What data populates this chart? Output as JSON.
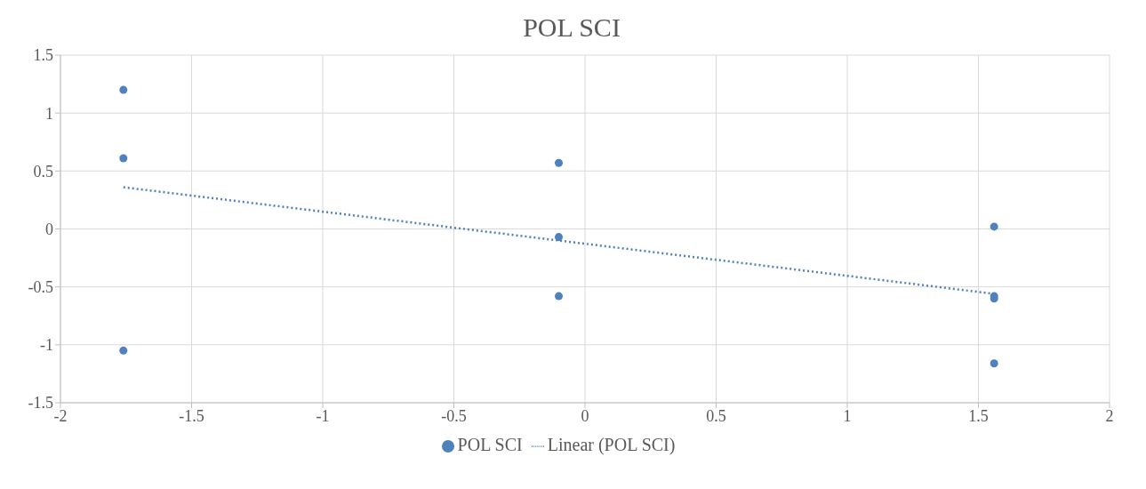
{
  "chart_data": {
    "type": "scatter",
    "title": "POL SCI",
    "series": [
      {
        "name": "POL SCI",
        "color": "#4f81bd",
        "x": [
          -1.76,
          -1.76,
          -1.76,
          -0.1,
          -0.1,
          -0.1,
          1.56,
          1.56,
          1.56,
          1.56
        ],
        "values": [
          1.2,
          0.61,
          -1.05,
          0.57,
          -0.07,
          -0.58,
          0.02,
          -0.58,
          -0.6,
          -1.16
        ]
      },
      {
        "name": "Linear (POL SCI)",
        "type": "line",
        "color": "#4f81bd",
        "line_style": "dotted",
        "marker": "none",
        "x": [
          -1.76,
          1.56
        ],
        "values": [
          0.36,
          -0.56
        ]
      }
    ],
    "xlim": [
      -2,
      2
    ],
    "xticks": [
      -2,
      -1.5,
      -1,
      -0.5,
      0,
      0.5,
      1,
      1.5,
      2
    ],
    "ylim": [
      -1.5,
      1.5
    ],
    "yticks": [
      -1.5,
      -1,
      -0.5,
      0,
      0.5,
      1,
      1.5
    ],
    "grid": true,
    "legend": "bottom",
    "marker": "circle"
  }
}
